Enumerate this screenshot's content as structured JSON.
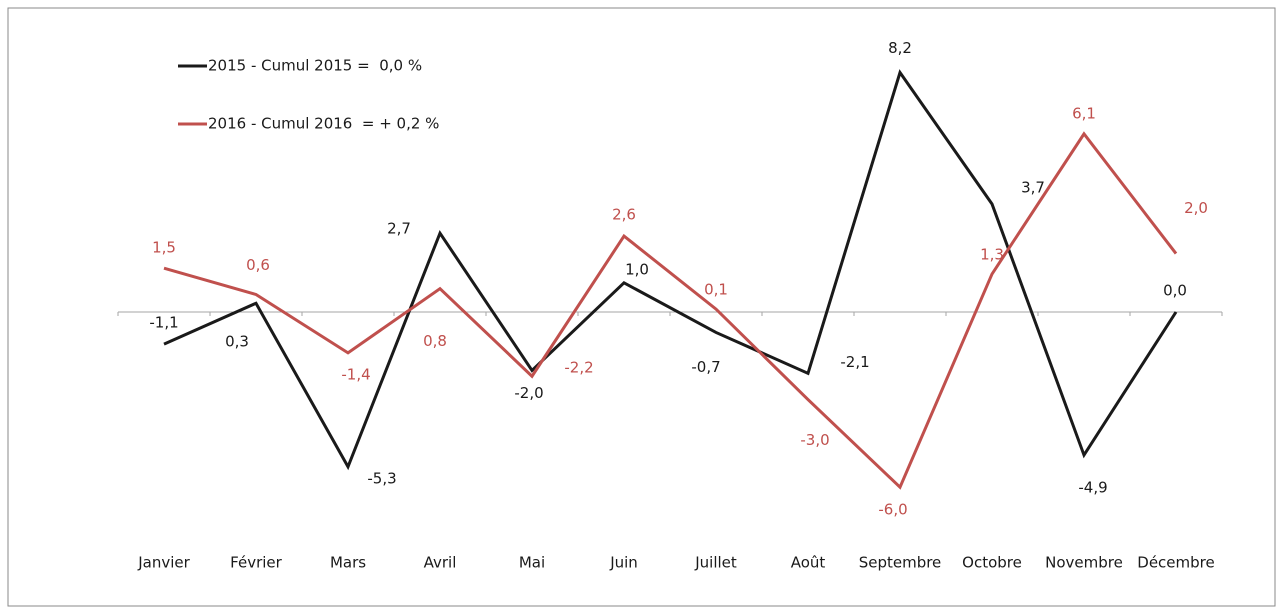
{
  "chart_data": {
    "type": "line",
    "categories": [
      "Janvier",
      "Février",
      "Mars",
      "Avril",
      "Mai",
      "Juin",
      "Juillet",
      "Août",
      "Septembre",
      "Octobre",
      "Novembre",
      "Décembre"
    ],
    "series": [
      {
        "name": "2015 - Cumul 2015 =  0,0 %",
        "color": "#1a1a1a",
        "values": [
          -1.1,
          0.3,
          -5.3,
          2.7,
          -2.0,
          1.0,
          -0.7,
          -2.1,
          8.2,
          3.7,
          -4.9,
          0.0
        ],
        "value_labels": [
          "-1,1",
          "0,3",
          "-5,3",
          "2,7",
          "-2,0",
          "1,0",
          "-0,7",
          "-2,1",
          "8,2",
          "3,7",
          "-4,9",
          "0,0"
        ]
      },
      {
        "name": "2016 - Cumul 2016  = + 0,2 %",
        "color": "#c0504d",
        "values": [
          1.5,
          0.6,
          -1.4,
          0.8,
          -2.2,
          2.6,
          0.1,
          -3.0,
          -6.0,
          1.3,
          6.1,
          2.0
        ],
        "value_labels": [
          "1,5",
          "0,6",
          "-1,4",
          "0,8",
          "-2,2",
          "2,6",
          "0,1",
          "-3,0",
          "-6,0",
          "1,3",
          "6,1",
          "2,0"
        ]
      }
    ],
    "ylim": [
      -8,
      10
    ]
  }
}
